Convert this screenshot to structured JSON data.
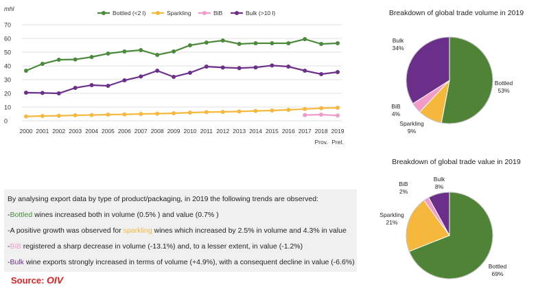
{
  "chart_data": [
    {
      "type": "line",
      "unit_label": "mhl",
      "x": [
        "2000",
        "2001",
        "2002",
        "2003",
        "2004",
        "2005",
        "2006",
        "2007",
        "2008",
        "2009",
        "2010",
        "2011",
        "2012",
        "2013",
        "2014",
        "2015",
        "2016",
        "2017",
        "2018",
        "2019"
      ],
      "x_sublabels": {
        "2018": "Prov.",
        "2019": "Prel."
      },
      "ylim": [
        0,
        70
      ],
      "yticks": [
        0,
        10,
        20,
        30,
        40,
        50,
        60,
        70
      ],
      "series": [
        {
          "name": "Bottled (<2 l)",
          "color": "#4a8a3a",
          "values": [
            36.5,
            41.5,
            44.5,
            44.7,
            46.5,
            49,
            50.5,
            51.5,
            48,
            50.5,
            55,
            57,
            58.5,
            56,
            56.5,
            56.5,
            56.5,
            59.5,
            56,
            56.5
          ]
        },
        {
          "name": "Sparkling",
          "color": "#f5b83d",
          "values": [
            3.2,
            3.5,
            3.7,
            4,
            4.2,
            4.5,
            4.7,
            5,
            5.2,
            5.5,
            6,
            6.3,
            6.5,
            6.8,
            7.2,
            7.5,
            8,
            8.6,
            9.2,
            9.5
          ]
        },
        {
          "name": "BiB",
          "color": "#f29bcb",
          "values": [
            null,
            null,
            null,
            null,
            null,
            null,
            null,
            null,
            null,
            null,
            null,
            null,
            null,
            null,
            null,
            null,
            null,
            4.2,
            4.5,
            3.9
          ]
        },
        {
          "name": "Bulk (>10 l)",
          "color": "#6b2f8a",
          "values": [
            20.5,
            20.3,
            20,
            24,
            26,
            25.5,
            29.5,
            32.3,
            36.5,
            32,
            35,
            39.5,
            38.8,
            38.4,
            38.9,
            40.3,
            39.5,
            36.5,
            34,
            35.5
          ]
        }
      ]
    },
    {
      "type": "pie",
      "title": "Breakdown of global trade volume in 2019",
      "slices": [
        {
          "name": "Bottled",
          "value": 53,
          "label": "53%",
          "color": "#4f8436"
        },
        {
          "name": "Sparkling",
          "value": 9,
          "label": "9%",
          "color": "#f5b83d"
        },
        {
          "name": "BiB",
          "value": 4,
          "label": "4%",
          "color": "#f29bcb"
        },
        {
          "name": "Bulk",
          "value": 34,
          "label": "34%",
          "color": "#6b2f8a"
        }
      ]
    },
    {
      "type": "pie",
      "title": "Breakdown of global trade value in 2019",
      "slices": [
        {
          "name": "Bottled",
          "value": 69,
          "label": "69%",
          "color": "#4f8436"
        },
        {
          "name": "Sparkling",
          "value": 21,
          "label": "21%",
          "color": "#f5b83d"
        },
        {
          "name": "BiB",
          "value": 2,
          "label": "2%",
          "color": "#f29bcb"
        },
        {
          "name": "Bulk",
          "value": 8,
          "label": "8%",
          "color": "#6b2f8a"
        }
      ]
    }
  ],
  "summary": {
    "intro": "By analysing export data by type of product/packaging, in 2019 the following trends are observed:",
    "lines": [
      {
        "prefix": "-",
        "keyword": "Bottled",
        "color": "#4a8a3a",
        "rest": " wines increased both in volume (0.5% ) and value (0.7% )"
      },
      {
        "prefix": "-A positive growth was observed for ",
        "keyword": "sparkling",
        "color": "#f5b83d",
        "rest": " wines which increased by 2.5% in volume and 4.3% in value"
      },
      {
        "prefix": "-",
        "keyword": "BiB",
        "color": "#f29bcb",
        "rest": " registered a sharp decrease in volume (-13.1%) and, to a lesser extent, in value (-1.2%)"
      },
      {
        "prefix": "-",
        "keyword": "Bulk",
        "color": "#6b2f8a",
        "rest": " wine exports strongly increased in terms of volume (+4.9%), with a consequent decline in value (-6.6%)"
      }
    ]
  },
  "source": {
    "label": "Source:",
    "org": "OIV"
  }
}
